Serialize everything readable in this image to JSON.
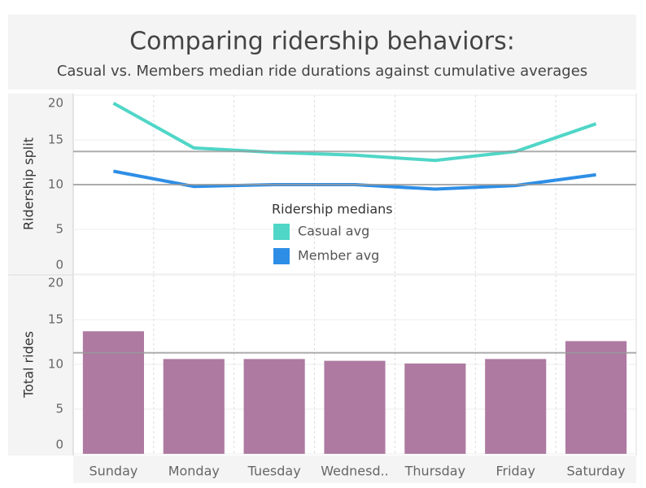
{
  "chart_data": [
    {
      "type": "line",
      "title": "Comparing ridership behaviors:",
      "subtitle": "Casual vs. Members median ride durations against cumulative averages",
      "y_label": "Ridership split",
      "legend_title": "Ridership medians",
      "categories": [
        "Sunday",
        "Monday",
        "Tuesday",
        "Wednesd..",
        "Thursday",
        "Friday",
        "Saturday"
      ],
      "series": [
        {
          "name": "Casual avg",
          "color": "#4fd6c7",
          "values": [
            19.1,
            14.1,
            13.6,
            13.3,
            12.7,
            13.7,
            16.8
          ]
        },
        {
          "name": "Member avg",
          "color": "#2e8ee6",
          "values": [
            11.5,
            9.8,
            10.0,
            10.0,
            9.5,
            9.9,
            11.1
          ]
        }
      ],
      "reference_lines": [
        13.7,
        10.0
      ],
      "ylim": [
        0,
        20
      ],
      "yticks": [
        0,
        5,
        10,
        15,
        20
      ],
      "grid": true
    },
    {
      "type": "bar",
      "y_label": "Total rides",
      "color": "#ae7aa1",
      "categories": [
        "Sunday",
        "Monday",
        "Tuesday",
        "Wednesd..",
        "Thursday",
        "Friday",
        "Saturday"
      ],
      "values": [
        13.7,
        10.6,
        10.6,
        10.4,
        10.1,
        10.6,
        12.6
      ],
      "reference_lines": [
        11.3
      ],
      "ylim": [
        0,
        20
      ],
      "yticks": [
        0,
        5,
        10,
        15,
        20
      ],
      "grid": true
    }
  ]
}
